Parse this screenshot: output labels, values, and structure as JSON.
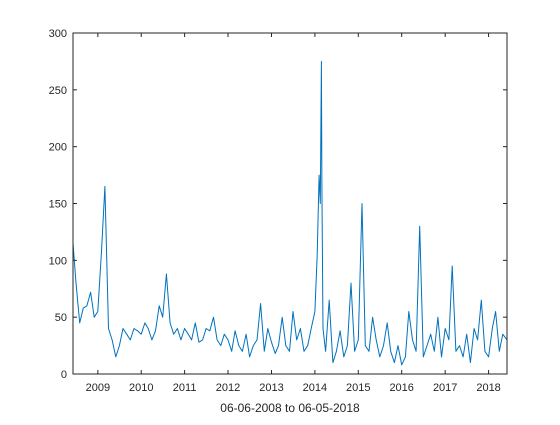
{
  "chart_data": {
    "type": "line",
    "xlabel": "06-06-2008 to 06-05-2018",
    "ylabel": "",
    "title": "",
    "xlim": [
      "2008-06-06",
      "2018-06-05"
    ],
    "ylim": [
      0,
      300
    ],
    "yticks": [
      0,
      50,
      100,
      150,
      200,
      250,
      300
    ],
    "xticks": [
      {
        "date": "2009-01-01",
        "label": "2009"
      },
      {
        "date": "2010-01-01",
        "label": "2010"
      },
      {
        "date": "2011-01-01",
        "label": "2011"
      },
      {
        "date": "2012-01-01",
        "label": "2012"
      },
      {
        "date": "2013-01-01",
        "label": "2013"
      },
      {
        "date": "2014-01-01",
        "label": "2014"
      },
      {
        "date": "2015-01-01",
        "label": "2015"
      },
      {
        "date": "2016-01-01",
        "label": "2016"
      },
      {
        "date": "2017-01-01",
        "label": "2017"
      },
      {
        "date": "2018-01-01",
        "label": "2018"
      }
    ],
    "grid": false,
    "series": [
      {
        "color": "#0072BD",
        "x": [
          "2008-06-06",
          "2008-07-01",
          "2008-08-01",
          "2008-09-01",
          "2008-10-01",
          "2008-11-01",
          "2008-12-01",
          "2009-01-01",
          "2009-02-01",
          "2009-03-01",
          "2009-04-01",
          "2009-05-01",
          "2009-06-01",
          "2009-07-01",
          "2009-08-01",
          "2009-09-01",
          "2009-10-01",
          "2009-11-01",
          "2009-12-01",
          "2010-01-01",
          "2010-02-01",
          "2010-03-01",
          "2010-04-01",
          "2010-05-01",
          "2010-06-01",
          "2010-07-01",
          "2010-08-01",
          "2010-09-01",
          "2010-10-01",
          "2010-11-01",
          "2010-12-01",
          "2011-01-01",
          "2011-02-01",
          "2011-03-01",
          "2011-04-01",
          "2011-05-01",
          "2011-06-01",
          "2011-07-01",
          "2011-08-01",
          "2011-09-01",
          "2011-10-01",
          "2011-11-01",
          "2011-12-01",
          "2012-01-01",
          "2012-02-01",
          "2012-03-01",
          "2012-04-01",
          "2012-05-01",
          "2012-06-01",
          "2012-07-01",
          "2012-08-01",
          "2012-09-01",
          "2012-10-01",
          "2012-11-01",
          "2012-12-01",
          "2013-01-01",
          "2013-02-01",
          "2013-03-01",
          "2013-04-01",
          "2013-05-01",
          "2013-06-01",
          "2013-07-01",
          "2013-08-01",
          "2013-09-01",
          "2013-10-01",
          "2013-11-01",
          "2013-12-01",
          "2014-01-01",
          "2014-01-20",
          "2014-02-05",
          "2014-02-15",
          "2014-02-25",
          "2014-03-01",
          "2014-03-10",
          "2014-04-01",
          "2014-05-01",
          "2014-06-01",
          "2014-07-01",
          "2014-08-01",
          "2014-09-01",
          "2014-10-01",
          "2014-11-01",
          "2014-12-01",
          "2015-01-01",
          "2015-02-01",
          "2015-03-01",
          "2015-04-01",
          "2015-05-01",
          "2015-06-01",
          "2015-07-01",
          "2015-08-01",
          "2015-09-01",
          "2015-10-01",
          "2015-11-01",
          "2015-12-01",
          "2016-01-01",
          "2016-02-01",
          "2016-03-01",
          "2016-04-01",
          "2016-05-01",
          "2016-06-01",
          "2016-07-01",
          "2016-08-01",
          "2016-09-01",
          "2016-10-01",
          "2016-11-01",
          "2016-12-01",
          "2017-01-01",
          "2017-02-01",
          "2017-03-01",
          "2017-04-01",
          "2017-05-01",
          "2017-06-01",
          "2017-07-01",
          "2017-08-01",
          "2017-09-01",
          "2017-10-01",
          "2017-11-01",
          "2017-12-01",
          "2018-01-01",
          "2018-02-01",
          "2018-03-01",
          "2018-04-01",
          "2018-05-01",
          "2018-06-05"
        ],
        "y": [
          115,
          80,
          45,
          58,
          60,
          72,
          50,
          55,
          108,
          165,
          40,
          30,
          15,
          25,
          40,
          35,
          30,
          40,
          38,
          35,
          45,
          40,
          30,
          38,
          60,
          50,
          88,
          45,
          35,
          40,
          30,
          40,
          35,
          30,
          45,
          28,
          30,
          40,
          38,
          50,
          30,
          25,
          35,
          30,
          20,
          38,
          25,
          20,
          35,
          15,
          25,
          30,
          62,
          20,
          40,
          28,
          18,
          25,
          50,
          25,
          20,
          55,
          30,
          40,
          20,
          25,
          40,
          55,
          105,
          175,
          150,
          275,
          165,
          40,
          20,
          65,
          10,
          20,
          38,
          15,
          25,
          80,
          20,
          30,
          150,
          25,
          20,
          50,
          30,
          15,
          25,
          45,
          20,
          10,
          25,
          8,
          15,
          55,
          30,
          20,
          130,
          15,
          25,
          35,
          20,
          50,
          15,
          40,
          30,
          95,
          20,
          25,
          15,
          35,
          10,
          40,
          30,
          65,
          20,
          15,
          40,
          55,
          20,
          35,
          30
        ]
      }
    ]
  }
}
